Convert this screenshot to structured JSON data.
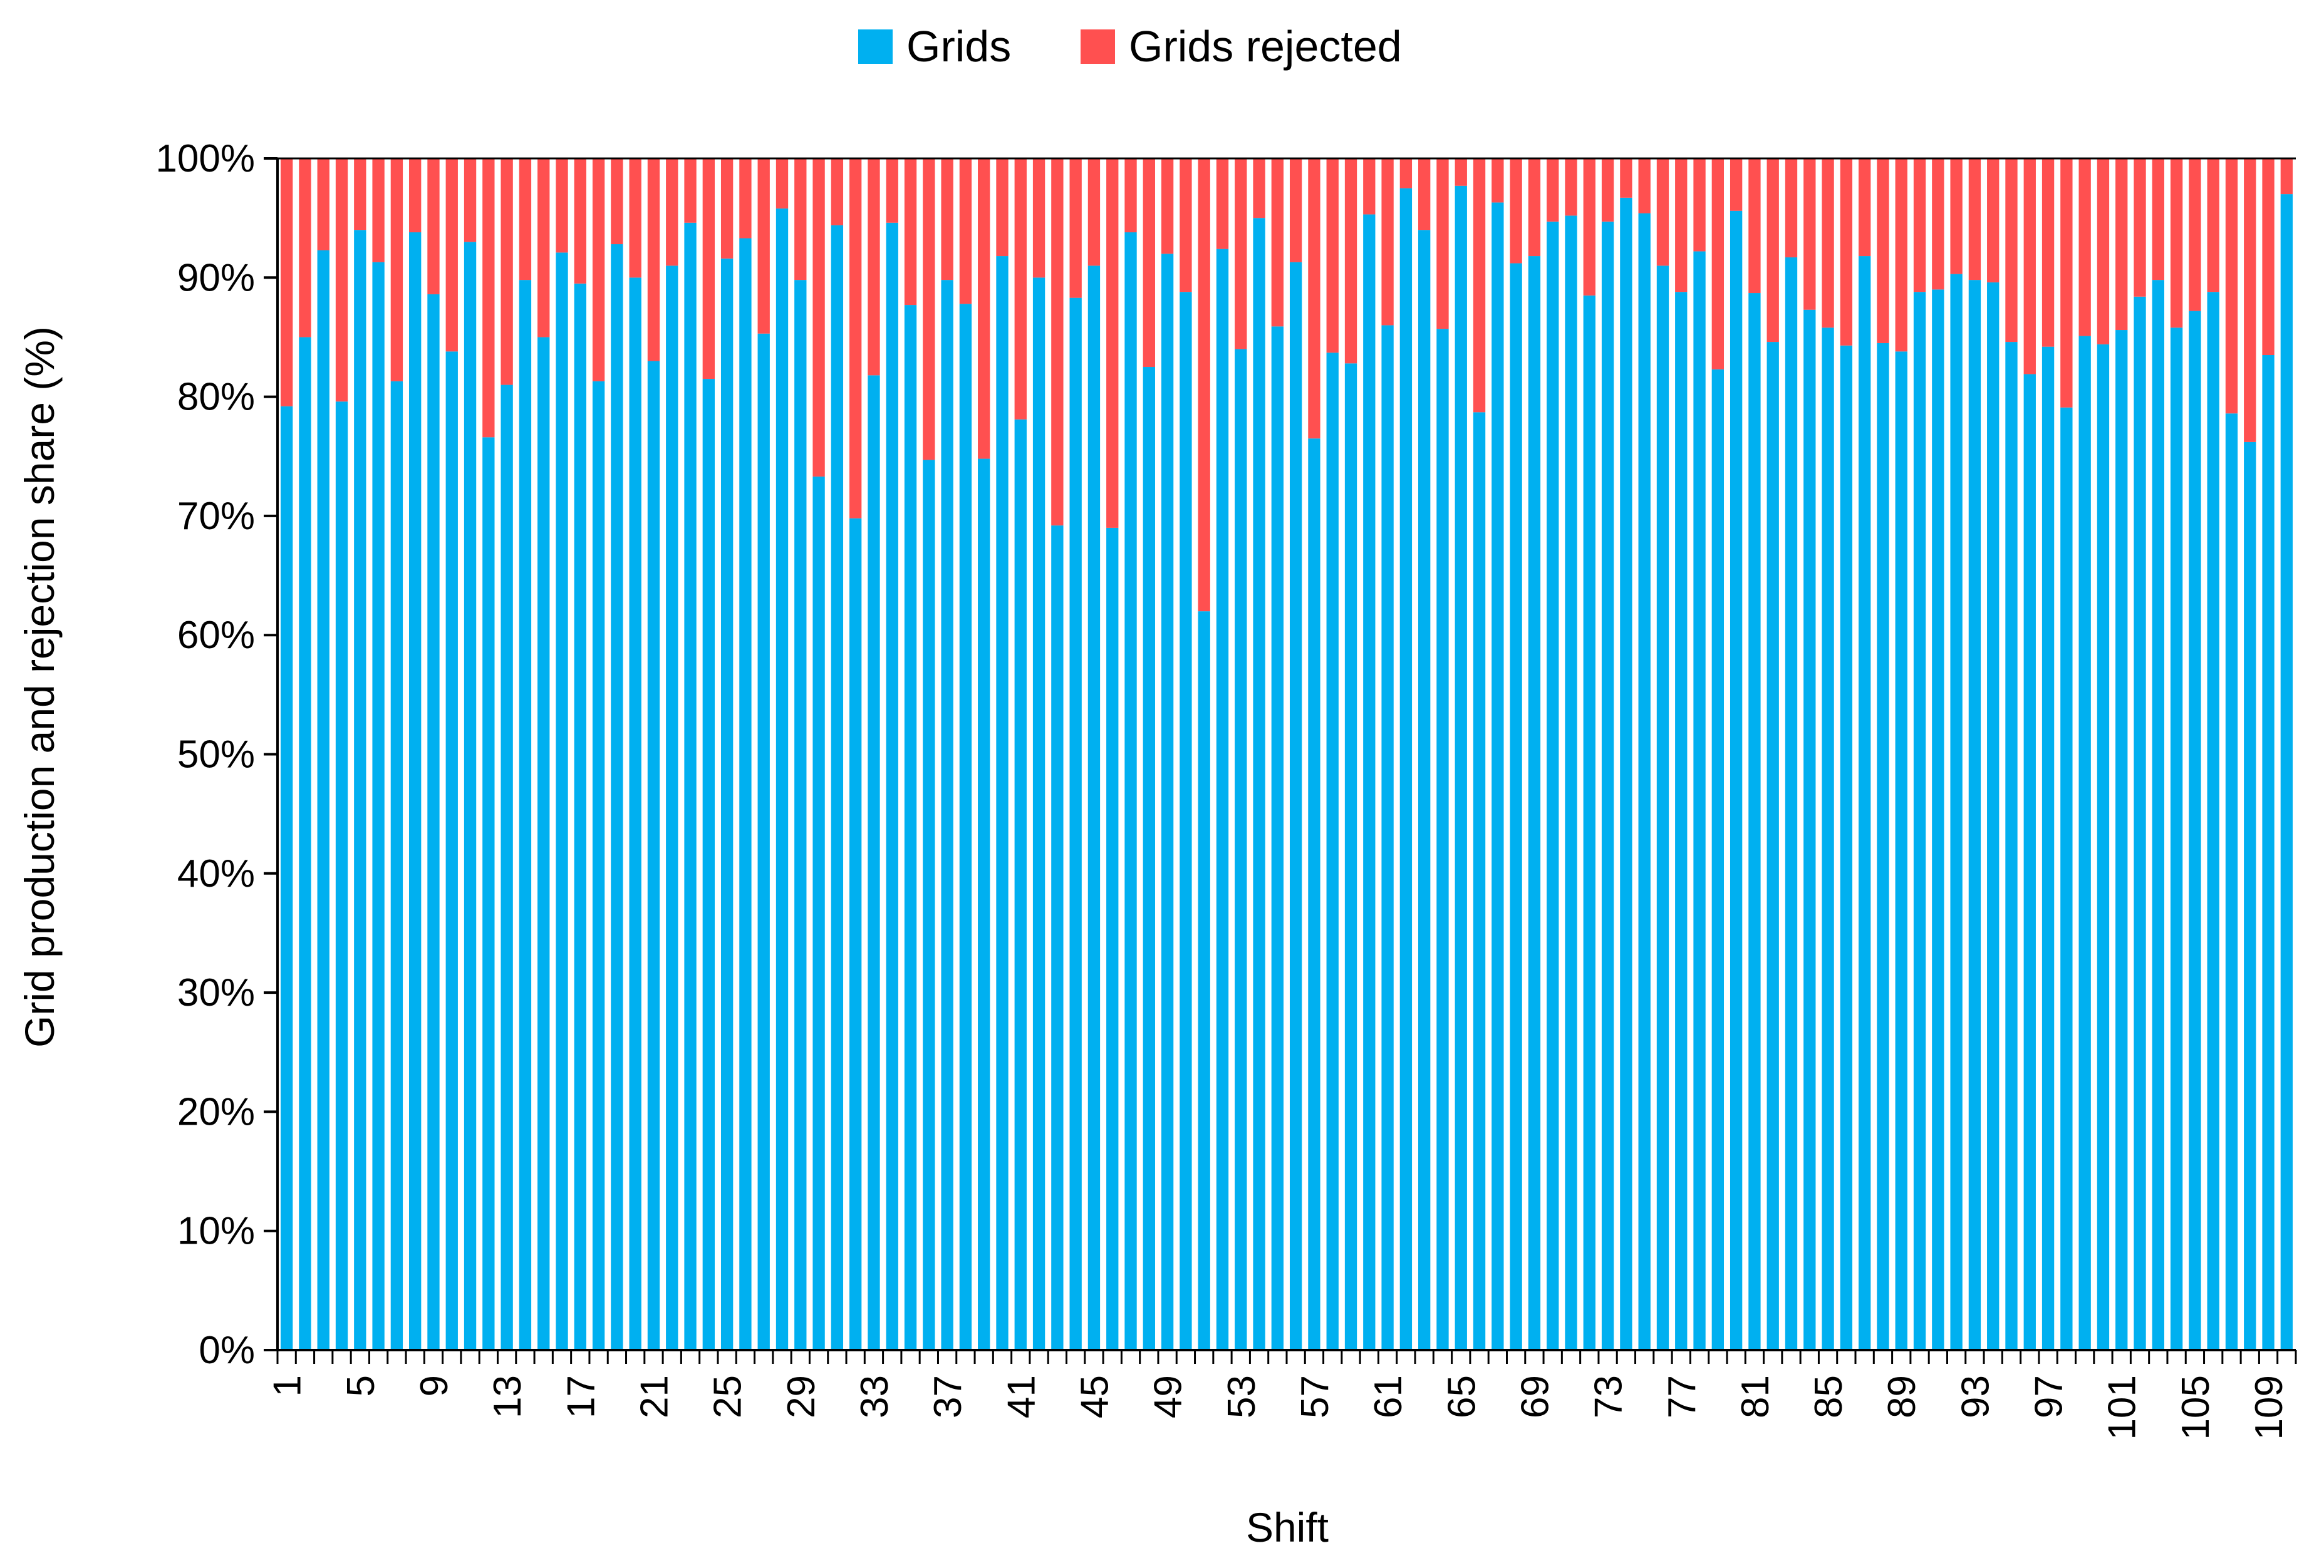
{
  "colors": {
    "grids": "#00B0F0",
    "grids_rejected": "#FF5050",
    "axis": "#000000",
    "background": "#FFFFFF"
  },
  "legend": {
    "items": [
      {
        "label": "Grids",
        "color": "#00B0F0"
      },
      {
        "label": "Grids rejected",
        "color": "#FF5050"
      }
    ],
    "position": "top-center"
  },
  "chart_data": {
    "type": "bar",
    "stacked": "percent",
    "title": "",
    "xlabel": "Shift",
    "ylabel": "Grid production and rejection share (%)",
    "ylim": [
      0,
      100
    ],
    "yticks": [
      "0%",
      "10%",
      "20%",
      "30%",
      "40%",
      "50%",
      "60%",
      "70%",
      "80%",
      "90%",
      "100%"
    ],
    "xtick_labels": [
      "1",
      "5",
      "9",
      "13",
      "17",
      "21",
      "25",
      "29",
      "33",
      "37",
      "41",
      "45",
      "49",
      "53",
      "57",
      "61",
      "65",
      "69",
      "73",
      "77",
      "81",
      "85",
      "89",
      "93",
      "97",
      "101",
      "105",
      "109"
    ],
    "grid": false,
    "categories": [
      1,
      2,
      3,
      4,
      5,
      6,
      7,
      8,
      9,
      10,
      11,
      12,
      13,
      14,
      15,
      16,
      17,
      18,
      19,
      20,
      21,
      22,
      23,
      24,
      25,
      26,
      27,
      28,
      29,
      30,
      31,
      32,
      33,
      34,
      35,
      36,
      37,
      38,
      39,
      40,
      41,
      42,
      43,
      44,
      45,
      46,
      47,
      48,
      49,
      50,
      51,
      52,
      53,
      54,
      55,
      56,
      57,
      58,
      59,
      60,
      61,
      62,
      63,
      64,
      65,
      66,
      67,
      68,
      69,
      70,
      71,
      72,
      73,
      74,
      75,
      76,
      77,
      78,
      79,
      80,
      81,
      82,
      83,
      84,
      85,
      86,
      87,
      88,
      89,
      90,
      91,
      92,
      93,
      94,
      95,
      96,
      97,
      98,
      99,
      100,
      101,
      102,
      103,
      104,
      105,
      106,
      107,
      108,
      109,
      110
    ],
    "series": [
      {
        "name": "Grids",
        "values": [
          79.2,
          85.0,
          92.3,
          79.6,
          94.0,
          91.3,
          81.3,
          93.8,
          88.6,
          83.8,
          93.0,
          76.6,
          81.0,
          89.8,
          85.0,
          92.1,
          89.5,
          81.3,
          92.8,
          90.0,
          83.0,
          91.0,
          94.6,
          81.5,
          91.6,
          93.3,
          85.3,
          95.8,
          89.8,
          73.3,
          94.4,
          69.8,
          81.8,
          94.6,
          87.7,
          74.7,
          89.8,
          87.8,
          74.8,
          91.8,
          78.1,
          90.0,
          69.2,
          88.3,
          91.0,
          69.0,
          93.8,
          82.5,
          92.0,
          88.8,
          62.0,
          92.4,
          84.0,
          95.0,
          85.9,
          91.3,
          76.5,
          83.7,
          82.8,
          95.3,
          86.0,
          97.5,
          94.0,
          85.7,
          97.7,
          78.7,
          96.3,
          91.2,
          91.8,
          94.7,
          95.2,
          88.5,
          94.7,
          96.7,
          95.4,
          91.0,
          88.8,
          92.2,
          82.3,
          95.6,
          88.7,
          84.6,
          91.7,
          87.3,
          85.8,
          84.3,
          91.8,
          84.5,
          83.8,
          88.8,
          89.0,
          90.3,
          89.8,
          89.6,
          84.6,
          81.9,
          84.2,
          79.1,
          85.1,
          84.4,
          85.6,
          88.4,
          89.8,
          85.8,
          87.2,
          88.8,
          78.6,
          76.2,
          83.5,
          97.0
        ]
      },
      {
        "name": "Grids rejected",
        "values": [
          20.8,
          15.0,
          7.7,
          20.4,
          6.0,
          8.7,
          18.7,
          6.2,
          11.4,
          16.2,
          7.0,
          23.4,
          19.0,
          10.2,
          15.0,
          7.9,
          10.5,
          18.7,
          7.2,
          10.0,
          17.0,
          9.0,
          5.4,
          18.5,
          8.4,
          6.7,
          14.7,
          4.2,
          10.2,
          26.7,
          5.6,
          30.2,
          18.2,
          5.4,
          12.3,
          25.3,
          10.2,
          12.2,
          25.2,
          8.2,
          21.9,
          10.0,
          30.8,
          11.7,
          9.0,
          31.0,
          6.2,
          17.5,
          8.0,
          11.2,
          38.0,
          7.6,
          16.0,
          5.0,
          14.1,
          8.7,
          23.5,
          16.3,
          17.2,
          4.7,
          14.0,
          2.5,
          6.0,
          14.3,
          2.3,
          21.3,
          3.7,
          8.8,
          8.2,
          5.3,
          4.8,
          11.5,
          5.3,
          3.3,
          4.6,
          9.0,
          11.2,
          7.8,
          17.7,
          4.4,
          11.3,
          15.4,
          8.3,
          12.7,
          14.2,
          15.7,
          8.2,
          15.5,
          16.2,
          11.2,
          11.0,
          9.7,
          10.2,
          10.4,
          15.4,
          18.1,
          15.8,
          20.9,
          14.9,
          15.6,
          14.4,
          11.6,
          10.2,
          14.2,
          12.8,
          11.2,
          21.4,
          23.8,
          16.5,
          3.0
        ]
      }
    ]
  }
}
